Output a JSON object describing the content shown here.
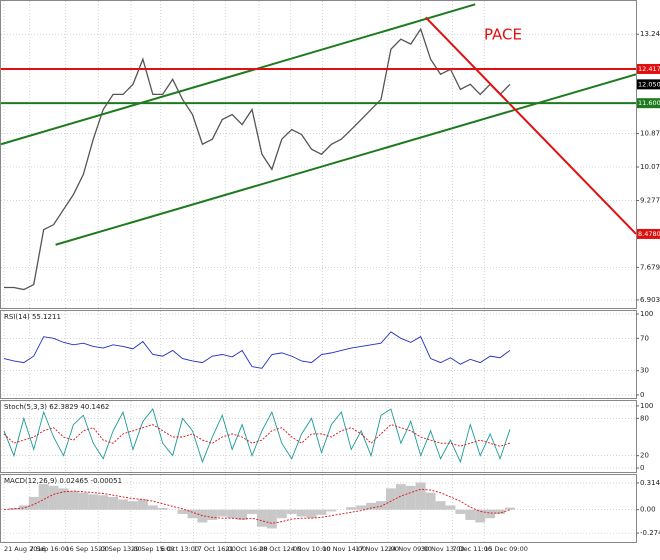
{
  "chart_data": [
    {
      "type": "line",
      "title": "PACE",
      "xlim": [
        -0.3,
        63.7
      ],
      "ylim": [
        6.71,
        14.04
      ],
      "grid": true,
      "xticks": [
        {
          "value": 0,
          "label": "21 Aug 2016"
        },
        {
          "value": 2.6,
          "label": "7 Sep 16:00"
        },
        {
          "value": 6.2,
          "label": "16 Sep 15:00"
        },
        {
          "value": 9.5,
          "label": "23 Sep 13:00"
        },
        {
          "value": 12.8,
          "label": "29 Sep 15:00"
        },
        {
          "value": 15.8,
          "label": "6 Oct 13:00"
        },
        {
          "value": 19.1,
          "label": "17 Oct 16:00"
        },
        {
          "value": 22.3,
          "label": "21 Oct 16:00"
        },
        {
          "value": 25.7,
          "label": "28 Oct 12:00"
        },
        {
          "value": 28.9,
          "label": "4 Nov 10:00"
        },
        {
          "value": 32.1,
          "label": "10 Nov 14:00"
        },
        {
          "value": 35.4,
          "label": "17 Nov 12:00"
        },
        {
          "value": 38.7,
          "label": "24 Nov 09:00"
        },
        {
          "value": 42,
          "label": "30 Nov 13:00"
        },
        {
          "value": 45.2,
          "label": "7 Dec 11:00"
        },
        {
          "value": 48.4,
          "label": "15 Dec 09:00"
        }
      ],
      "yticks": [
        13.2465,
        {
          "value": 10.875,
          "label": "10.8750"
        },
        10.0763,
        {
          "value": 9.277,
          "label": "9.2770"
        },
        {
          "value": 7.679,
          "label": "7.6790"
        },
        6.9036
      ],
      "series": [
        {
          "color": "#555555",
          "values": [
            7.2,
            7.2,
            7.15,
            7.27,
            8.58,
            8.7,
            9.06,
            9.42,
            9.9,
            10.74,
            11.45,
            11.81,
            11.81,
            12.05,
            12.65,
            11.81,
            11.81,
            12.17,
            11.69,
            11.33,
            10.62,
            10.74,
            11.21,
            11.33,
            11.09,
            11.45,
            10.38,
            10.02,
            10.74,
            10.97,
            10.85,
            10.5,
            10.38,
            10.62,
            10.74,
            10.97,
            11.21,
            11.45,
            11.69,
            12.89,
            13.13,
            13.01,
            13.37,
            12.65,
            12.29,
            12.41,
            11.93,
            12.05,
            11.81,
            12.05,
            11.81,
            12.05
          ]
        }
      ],
      "trend_lines": [
        {
          "color": "#1e7a1e",
          "x": [
            -0.3,
            47.5
          ],
          "values": [
            10.62,
            13.96
          ]
        },
        {
          "color": "#1e7a1e",
          "x": [
            5.2,
            63.7
          ],
          "values": [
            8.22,
            12.29
          ]
        },
        {
          "color": "#e01010",
          "x": [
            42.5,
            63.7
          ],
          "values": [
            13.65,
            {
              "value": 8.478,
              "label": "8.4780"
            }
          ]
        }
      ],
      "levels": [
        {
          "value": 12.4171,
          "color": "#e01010",
          "line": true
        },
        {
          "value": 11.6004,
          "color": "#1e7a1e",
          "line": true
        },
        {
          "value": 12.05,
          "label": "12.0500",
          "color": "#000000",
          "line": false
        }
      ]
    },
    {
      "type": "line",
      "title": "RSI(14) 55.1211",
      "ylim": [
        -3.75,
        103.75
      ],
      "grid": true,
      "yticks": [
        100,
        70,
        30,
        0
      ],
      "series": [
        {
          "color": "#2030c0",
          "values": [
            45,
            42,
            40,
            48,
            72,
            70,
            65,
            62,
            64,
            60,
            58,
            62,
            60,
            57,
            66,
            50,
            48,
            55,
            45,
            42,
            40,
            48,
            50,
            47,
            55,
            35,
            33,
            50,
            52,
            48,
            42,
            40,
            50,
            52,
            55,
            58,
            60,
            62,
            64,
            78,
            70,
            65,
            72,
            45,
            40,
            46,
            38,
            44,
            40,
            48,
            46,
            55.1211
          ]
        }
      ]
    },
    {
      "type": "line",
      "title": "Stoch(5,3,3) 62.3829 40.1462",
      "ylim": [
        -6.3,
        107.9
      ],
      "grid": true,
      "yticks": [
        100,
        80,
        20,
        0
      ],
      "series": [
        {
          "color": "#1a9a9a",
          "values": [
            60,
            20,
            80,
            30,
            90,
            50,
            20,
            70,
            85,
            40,
            15,
            60,
            90,
            30,
            75,
            95,
            40,
            20,
            80,
            60,
            10,
            50,
            85,
            30,
            70,
            20,
            60,
            90,
            40,
            15,
            55,
            80,
            25,
            70,
            90,
            30,
            60,
            20,
            85,
            95,
            40,
            75,
            20,
            60,
            15,
            45,
            10,
            70,
            20,
            55,
            15,
            62.3829
          ]
        },
        {
          "color": "#e01010",
          "dashed": true,
          "values": [
            55,
            40,
            45,
            50,
            60,
            65,
            50,
            45,
            60,
            65,
            45,
            40,
            55,
            60,
            65,
            70,
            60,
            50,
            50,
            55,
            45,
            40,
            50,
            55,
            50,
            40,
            45,
            60,
            65,
            50,
            40,
            55,
            55,
            50,
            60,
            65,
            55,
            40,
            55,
            70,
            65,
            60,
            50,
            45,
            40,
            40,
            35,
            40,
            45,
            40,
            35,
            40.1462
          ]
        }
      ]
    },
    {
      "type": "line",
      "title": "MACD(12,26,9) 0.02465 -0.00051",
      "ylim": [
        -0.379,
        0.407
      ],
      "grid": true,
      "yticks": [
        0.3143,
        {
          "value": 0,
          "label": "0.00"
        },
        -0.2749
      ],
      "series": [
        {
          "type": "bar",
          "color": "#c8c8c8",
          "values": [
            0.0,
            0.02,
            0.05,
            0.15,
            0.3,
            0.28,
            0.25,
            0.22,
            0.2,
            0.18,
            0.17,
            0.15,
            0.12,
            0.1,
            0.12,
            0.05,
            0.02,
            0.0,
            -0.05,
            -0.1,
            -0.15,
            -0.12,
            -0.08,
            -0.1,
            -0.12,
            -0.05,
            -0.2,
            -0.22,
            -0.1,
            -0.05,
            -0.08,
            -0.1,
            -0.06,
            -0.02,
            0.0,
            0.03,
            0.05,
            0.08,
            0.1,
            0.25,
            0.3,
            0.28,
            0.32,
            0.2,
            0.1,
            0.05,
            -0.05,
            -0.12,
            -0.15,
            -0.1,
            -0.05,
            0.02465
          ]
        },
        {
          "color": "#e01010",
          "dashed": true,
          "values": [
            0.0,
            0.01,
            0.02,
            0.06,
            0.12,
            0.18,
            0.21,
            0.22,
            0.21,
            0.2,
            0.19,
            0.17,
            0.15,
            0.13,
            0.12,
            0.1,
            0.07,
            0.04,
            0.01,
            -0.03,
            -0.07,
            -0.09,
            -0.1,
            -0.1,
            -0.11,
            -0.1,
            -0.13,
            -0.16,
            -0.14,
            -0.11,
            -0.1,
            -0.1,
            -0.09,
            -0.07,
            -0.05,
            -0.03,
            -0.01,
            0.02,
            0.04,
            0.1,
            0.16,
            0.2,
            0.24,
            0.23,
            0.2,
            0.15,
            0.1,
            0.03,
            -0.02,
            -0.04,
            -0.04,
            -0.00051
          ]
        }
      ]
    }
  ]
}
